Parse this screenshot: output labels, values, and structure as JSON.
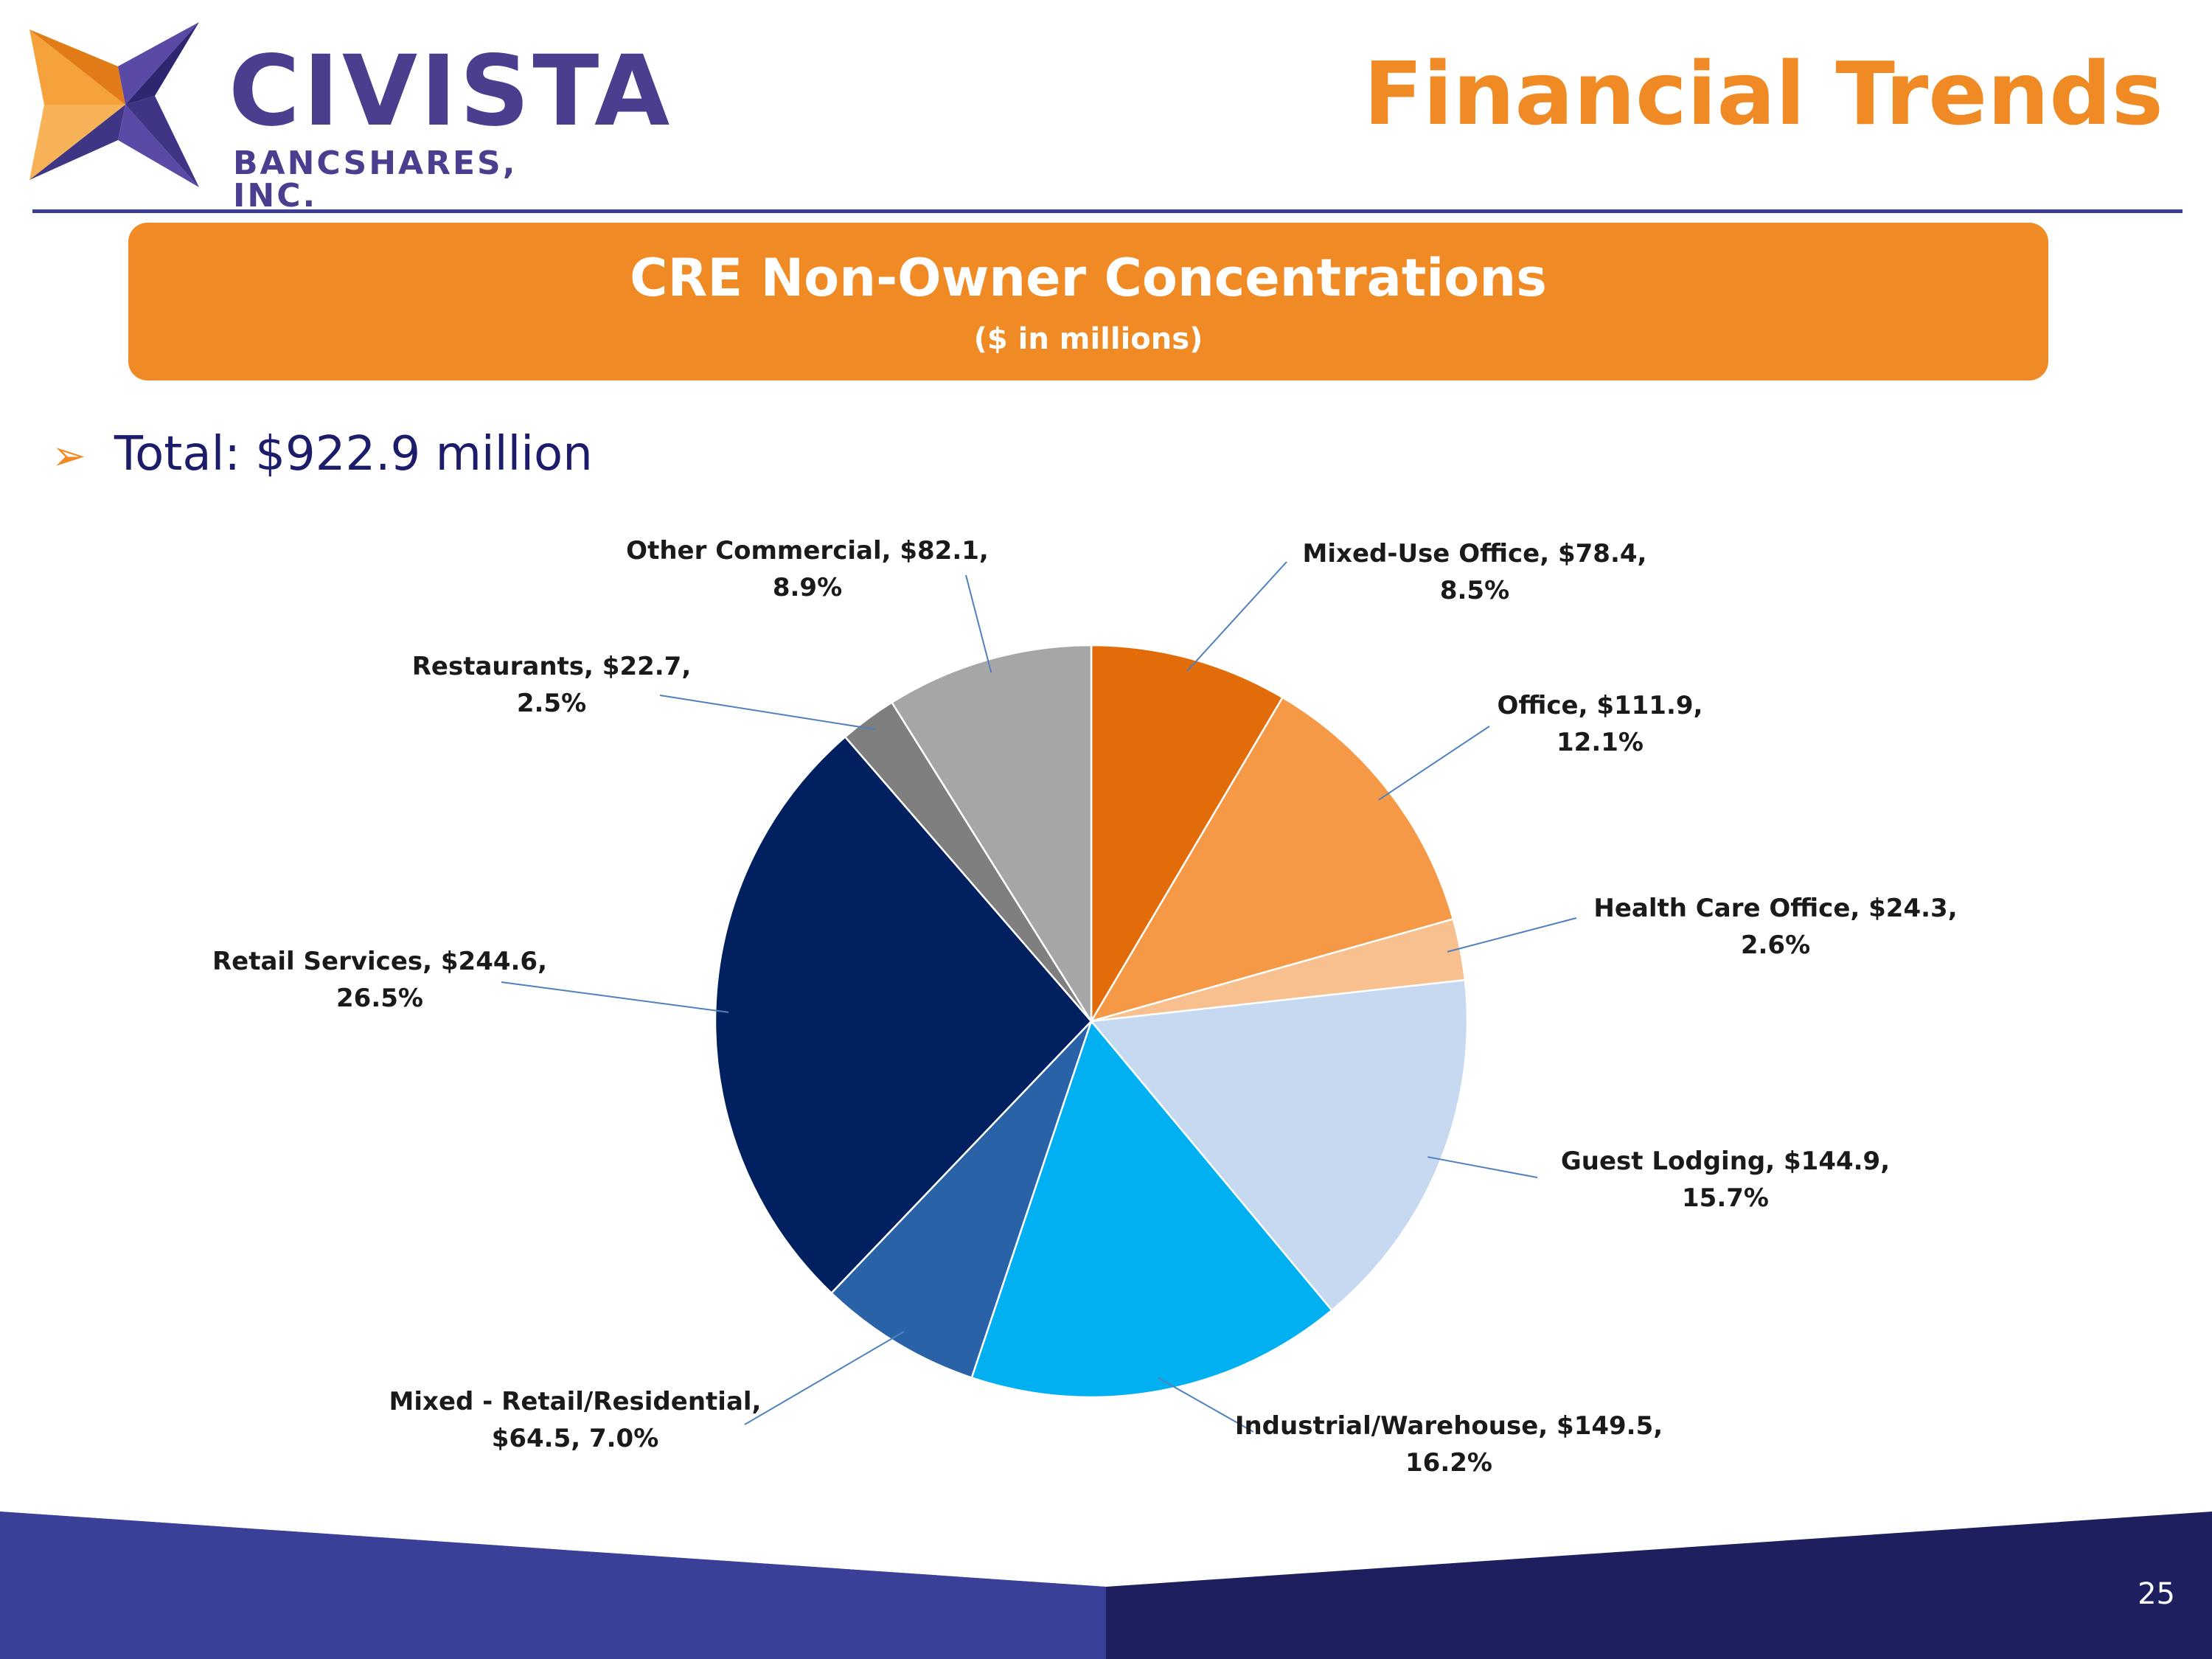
{
  "logo": {
    "word": "CIVISTA",
    "sub": "BANCSHARES, INC."
  },
  "header": {
    "title": "Financial Trends"
  },
  "banner": {
    "title": "CRE Non-Owner Concentrations",
    "subtitle": "($ in millions)"
  },
  "summary": {
    "total_text": "Total: $922.9 million"
  },
  "chart_data": {
    "type": "pie",
    "title": "CRE Non-Owner Concentrations",
    "subtitle": "($ in millions)",
    "total": 922.9,
    "start": "12 o'clock, clockwise",
    "slices": [
      {
        "name": "Mixed-Use Office",
        "value": 78.4,
        "percent": 8.5,
        "color": "#e36c0a",
        "label_lines": [
          "Mixed-Use Office, $78.4,",
          "8.5%"
        ]
      },
      {
        "name": "Office",
        "value": 111.9,
        "percent": 12.1,
        "color": "#f59946",
        "label_lines": [
          "Office, $111.9,",
          "12.1%"
        ]
      },
      {
        "name": "Health Care Office",
        "value": 24.3,
        "percent": 2.6,
        "color": "#f9c08f",
        "label_lines": [
          "Health Care Office, $24.3,",
          "2.6%"
        ]
      },
      {
        "name": "Guest Lodging",
        "value": 144.9,
        "percent": 15.7,
        "color": "#c6d9f1",
        "label_lines": [
          "Guest Lodging, $144.9,",
          "15.7%"
        ]
      },
      {
        "name": "Industrial/Warehouse",
        "value": 149.5,
        "percent": 16.2,
        "color": "#00b0f0",
        "label_lines": [
          "Industrial/Warehouse, $149.5,",
          "16.2%"
        ]
      },
      {
        "name": "Mixed - Retail/Residential",
        "value": 64.5,
        "percent": 7.0,
        "color": "#2a62a8",
        "label_lines": [
          "Mixed - Retail/Residential,",
          "$64.5, 7.0%"
        ]
      },
      {
        "name": "Retail Services",
        "value": 244.6,
        "percent": 26.5,
        "color": "#002060",
        "label_lines": [
          "Retail Services, $244.6,",
          "26.5%"
        ]
      },
      {
        "name": "Restaurants",
        "value": 22.7,
        "percent": 2.5,
        "color": "#7f7f7f",
        "label_lines": [
          "Restaurants, $22.7,",
          "2.5%"
        ]
      },
      {
        "name": "Other Commercial",
        "value": 82.1,
        "percent": 8.9,
        "color": "#a6a6a6",
        "label_lines": [
          "Other Commercial, $82.1,",
          "8.9%"
        ]
      }
    ]
  },
  "footer": {
    "page_number": "25"
  },
  "colors": {
    "accent": "#ef8a24",
    "brand": "#3b3f98",
    "navy": "#1d1c6a"
  }
}
